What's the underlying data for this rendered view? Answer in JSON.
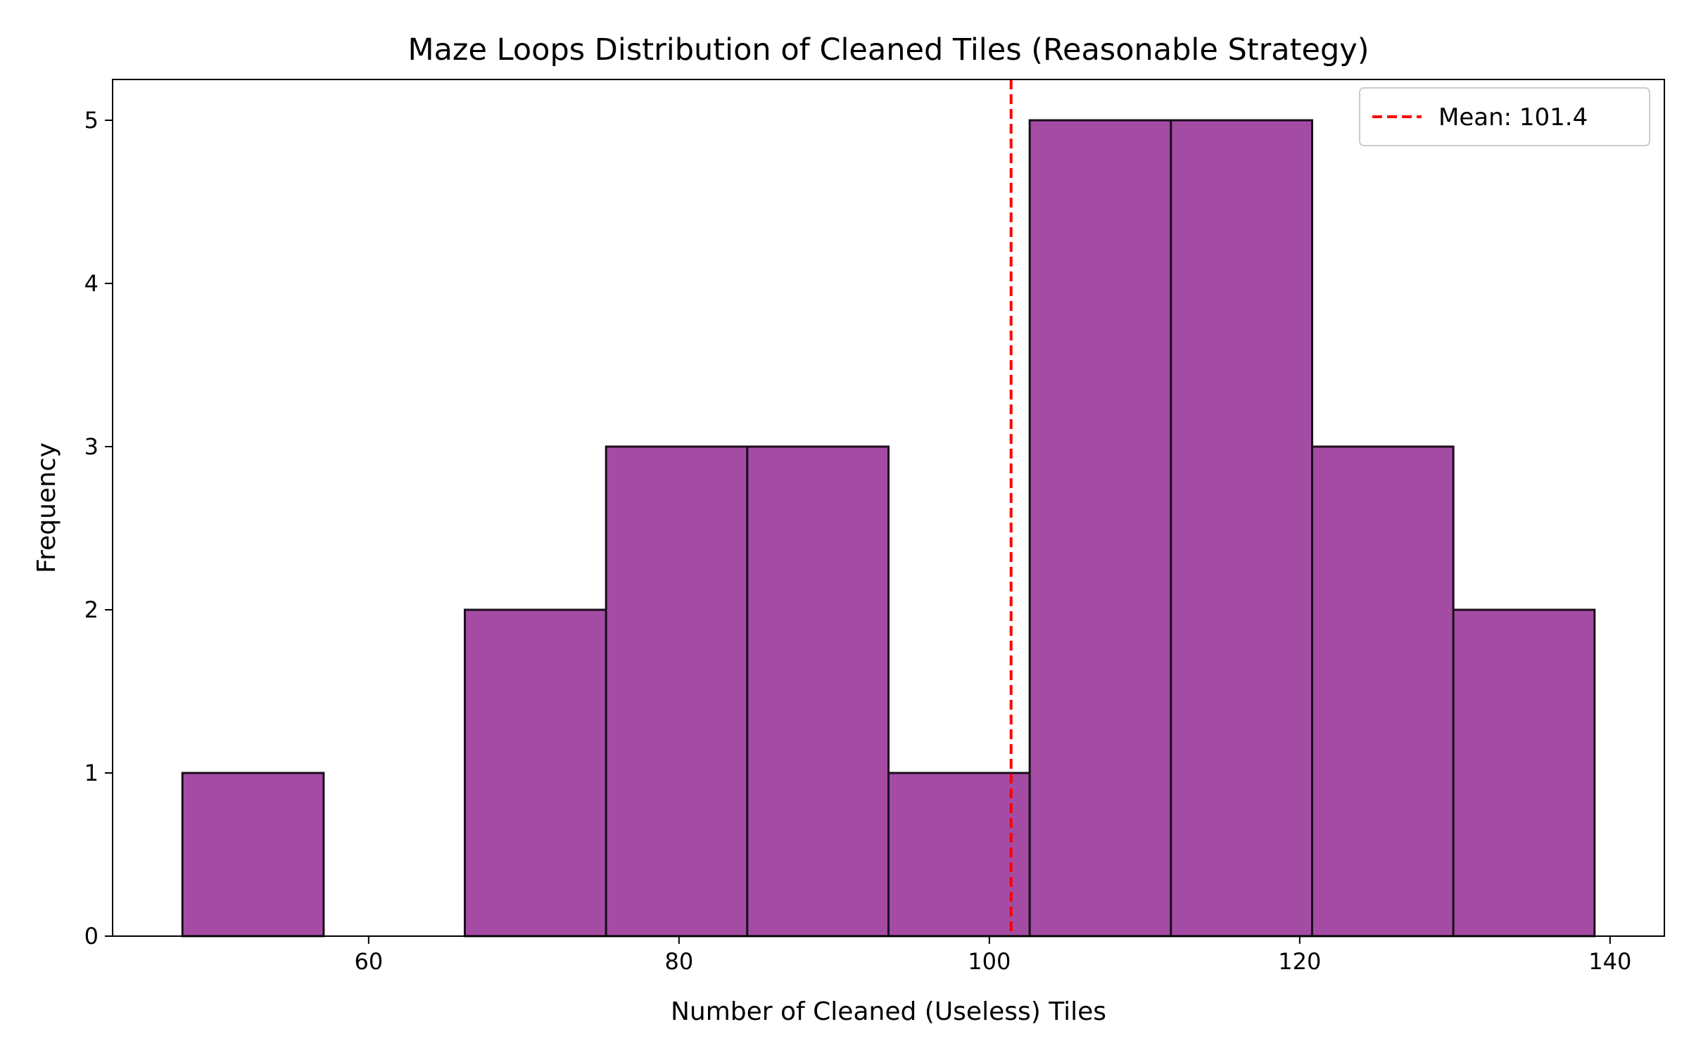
{
  "chart_data": {
    "type": "bar",
    "title": "Maze Loops Distribution of Cleaned Tiles (Reasonable Strategy)",
    "xlabel": "Number of Cleaned (Useless) Tiles",
    "ylabel": "Frequency",
    "bin_edges": [
      48,
      57.1,
      66.2,
      75.3,
      84.4,
      93.5,
      102.6,
      111.7,
      120.8,
      129.9,
      139
    ],
    "counts": [
      1,
      0,
      2,
      3,
      3,
      1,
      5,
      5,
      3,
      2
    ],
    "xlim": [
      43.5,
      143.5
    ],
    "ylim": [
      0,
      5.25
    ],
    "x_ticks": [
      60,
      80,
      100,
      120,
      140
    ],
    "y_ticks": [
      0,
      1,
      2,
      3,
      4,
      5
    ],
    "mean_line": {
      "value": 101.4,
      "label": "Mean: 101.4",
      "color": "#ff0000"
    },
    "bar_color": "#a44ca4",
    "edge_color": "#1a0d1a",
    "legend_position": "top-right",
    "grid": false
  }
}
